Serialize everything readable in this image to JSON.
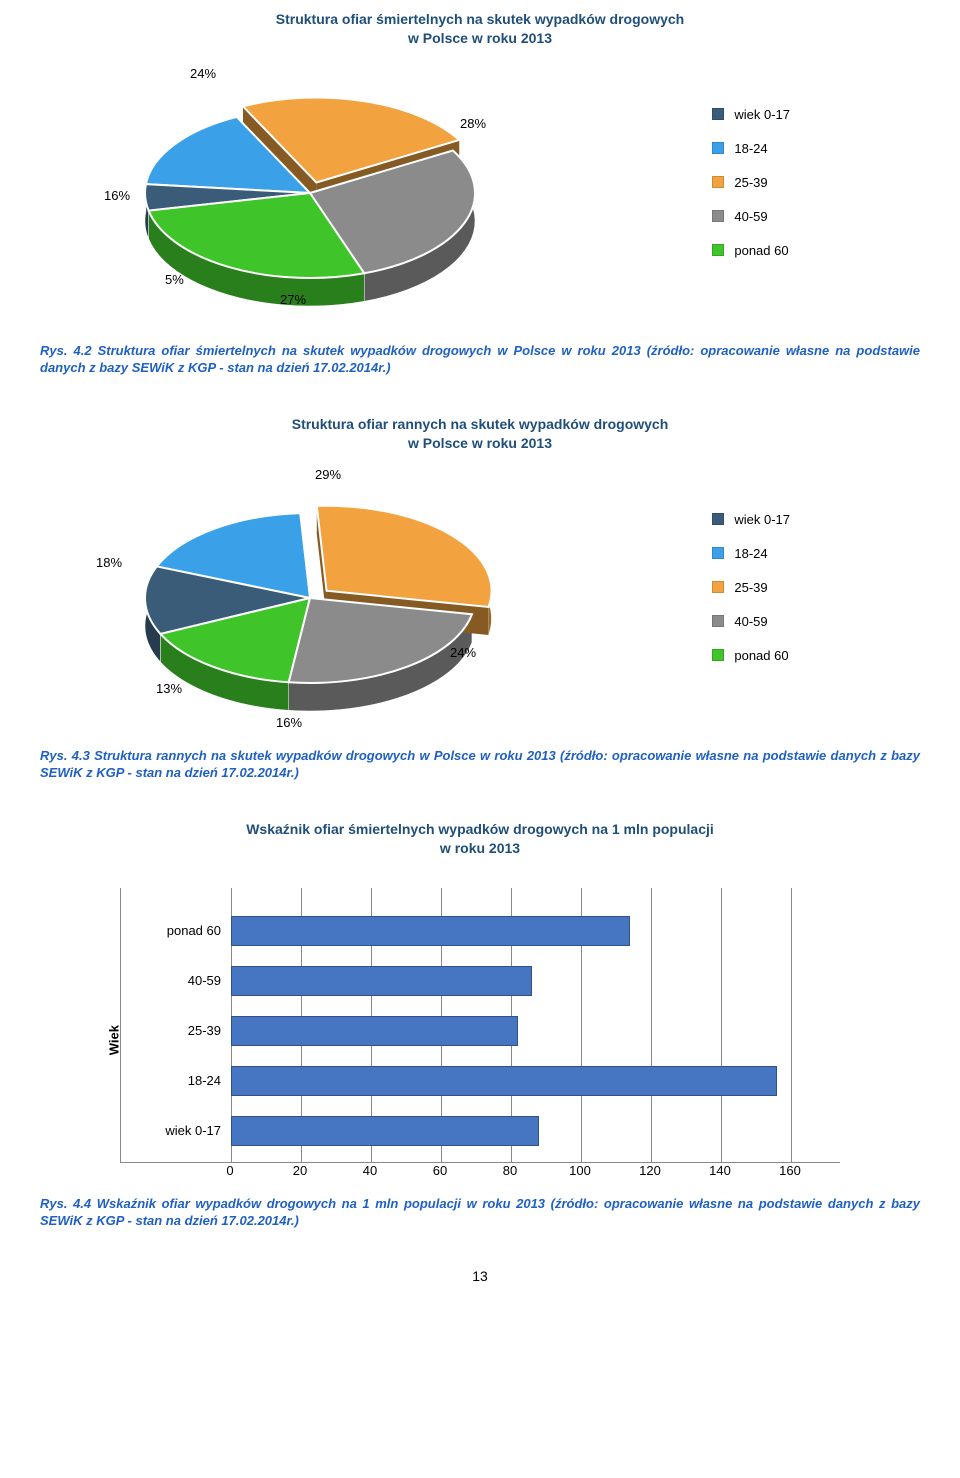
{
  "chart1": {
    "title_line1": "Struktura ofiar śmiertelnych na skutek wypadków drogowych",
    "title_line2": "w Polsce w roku 2013",
    "labels": {
      "a": "24%",
      "b": "28%",
      "c": "16%",
      "d": "5%",
      "e": "27%"
    },
    "slices": [
      {
        "label": "wiek 0-17",
        "color": "#3b5c78",
        "value": 5
      },
      {
        "label": "18-24",
        "color": "#3aa0e8",
        "value": 16
      },
      {
        "label": "25-39",
        "color": "#f2a340",
        "value": 24
      },
      {
        "label": "40-59",
        "color": "#8b8b8b",
        "value": 28
      },
      {
        "label": "ponad 60",
        "color": "#3fc429",
        "value": 27
      }
    ]
  },
  "caption1": "Rys. 4.2 Struktura ofiar śmiertelnych na skutek wypadków drogowych w Polsce w roku 2013 (źródło: opracowanie własne na podstawie danych z bazy SEWiK z KGP - stan na dzień 17.02.2014r.)",
  "chart2": {
    "title_line1": "Struktura ofiar rannych na skutek wypadków drogowych",
    "title_line2": "w Polsce w roku 2013",
    "labels": {
      "a": "29%",
      "b": "18%",
      "c": "13%",
      "d": "24%",
      "e": "16%"
    },
    "slices": [
      {
        "label": "wiek 0-17",
        "color": "#3b5c78",
        "value": 13
      },
      {
        "label": "18-24",
        "color": "#3aa0e8",
        "value": 18
      },
      {
        "label": "25-39",
        "color": "#f2a340",
        "value": 29
      },
      {
        "label": "40-59",
        "color": "#8b8b8b",
        "value": 24
      },
      {
        "label": "ponad 60",
        "color": "#3fc429",
        "value": 16
      }
    ]
  },
  "caption2": "Rys. 4.3 Struktura rannych na skutek wypadków drogowych w Polsce w roku 2013 (źródło: opracowanie własne na podstawie danych z bazy SEWiK z KGP - stan na dzień 17.02.2014r.)",
  "chart3": {
    "title_line1": "Wskaźnik ofiar śmiertelnych wypadków drogowych na 1 mln populacji",
    "title_line2": "w roku 2013",
    "ylabel": "Wiek",
    "xmax": 160,
    "xstep": 20,
    "bar_color": "#4675c2",
    "categories": [
      {
        "label": "ponad 60",
        "value": 114
      },
      {
        "label": "40-59",
        "value": 86
      },
      {
        "label": "25-39",
        "value": 82
      },
      {
        "label": "18-24",
        "value": 156
      },
      {
        "label": "wiek 0-17",
        "value": 88
      }
    ]
  },
  "caption3": "Rys. 4.4 Wskaźnik ofiar wypadków drogowych na 1 mln populacji w roku 2013 (źródło: opracowanie własne na podstawie danych z bazy SEWiK z KGP - stan na dzień 17.02.2014r.)",
  "page_number": "13"
}
